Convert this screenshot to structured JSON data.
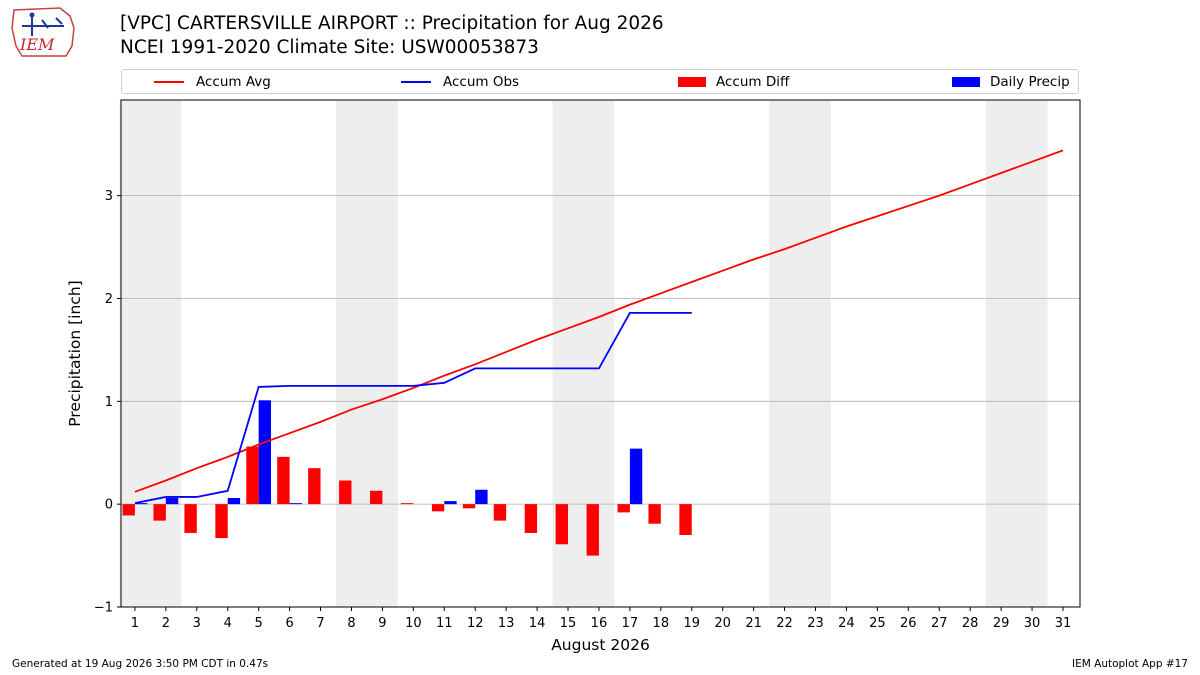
{
  "header": {
    "title_line1": "[VPC] CARTERSVILLE AIRPORT :: Precipitation for Aug 2026",
    "title_line2": "NCEI 1991-2020 Climate Site: USW00053873"
  },
  "logo": {
    "text": "IEM"
  },
  "legend": {
    "accum_avg": "Accum Avg",
    "accum_obs": "Accum Obs",
    "accum_diff": "Accum Diff",
    "daily_precip": "Daily Precip"
  },
  "footer": {
    "generated": "Generated at 19 Aug 2026 3:50 PM CDT in 0.47s",
    "app": "IEM Autoplot App #17"
  },
  "chart_data": {
    "type": "bar",
    "xlabel": "August 2026",
    "ylabel": "Precipitation [inch]",
    "ylim": [
      -1,
      3.93
    ],
    "xlim": [
      0.55,
      31.55
    ],
    "yticks": [
      -1,
      0,
      1,
      2,
      3
    ],
    "ytick_labels": [
      "−1",
      "0",
      "1",
      "2",
      "3"
    ],
    "days": [
      1,
      2,
      3,
      4,
      5,
      6,
      7,
      8,
      9,
      10,
      11,
      12,
      13,
      14,
      15,
      16,
      17,
      18,
      19,
      20,
      21,
      22,
      23,
      24,
      25,
      26,
      27,
      28,
      29,
      30,
      31
    ],
    "grid": "horizontal",
    "weekend_shading": [
      [
        1,
        2
      ],
      [
        8,
        9
      ],
      [
        15,
        16
      ],
      [
        22,
        23
      ],
      [
        29,
        30
      ]
    ],
    "colors": {
      "avg": "#ff0000",
      "obs": "#0000ff",
      "diff": "#ff0000",
      "precip": "#0000ff",
      "shade": "#eeeeee",
      "grid": "#b0b0b0"
    },
    "series": [
      {
        "name": "Accum Avg",
        "kind": "line",
        "values": [
          0.12,
          0.23,
          0.35,
          0.46,
          0.58,
          0.69,
          0.8,
          0.92,
          1.02,
          1.13,
          1.25,
          1.36,
          1.48,
          1.6,
          1.71,
          1.82,
          1.94,
          2.05,
          2.16,
          2.27,
          2.38,
          2.48,
          2.59,
          2.7,
          2.8,
          2.9,
          3.0,
          3.11,
          3.22,
          3.33,
          3.44
        ]
      },
      {
        "name": "Accum Obs",
        "kind": "line",
        "values": [
          0.01,
          0.07,
          0.07,
          0.13,
          1.14,
          1.15,
          1.15,
          1.15,
          1.15,
          1.15,
          1.18,
          1.32,
          1.32,
          1.32,
          1.32,
          1.32,
          1.86,
          1.86,
          1.86
        ]
      },
      {
        "name": "Accum Diff",
        "kind": "bar",
        "values": [
          -0.11,
          -0.16,
          -0.28,
          -0.33,
          0.56,
          0.46,
          0.35,
          0.23,
          0.13,
          0.01,
          -0.07,
          -0.04,
          -0.16,
          -0.28,
          -0.39,
          -0.5,
          -0.08,
          -0.19,
          -0.3
        ]
      },
      {
        "name": "Daily Precip",
        "kind": "bar",
        "values": [
          0.01,
          0.06,
          0.0,
          0.06,
          1.01,
          0.01,
          0.0,
          0.0,
          0.0,
          0.0,
          0.03,
          0.14,
          0.0,
          0.0,
          0.0,
          0.0,
          0.54,
          0.0,
          0.0
        ]
      }
    ]
  }
}
